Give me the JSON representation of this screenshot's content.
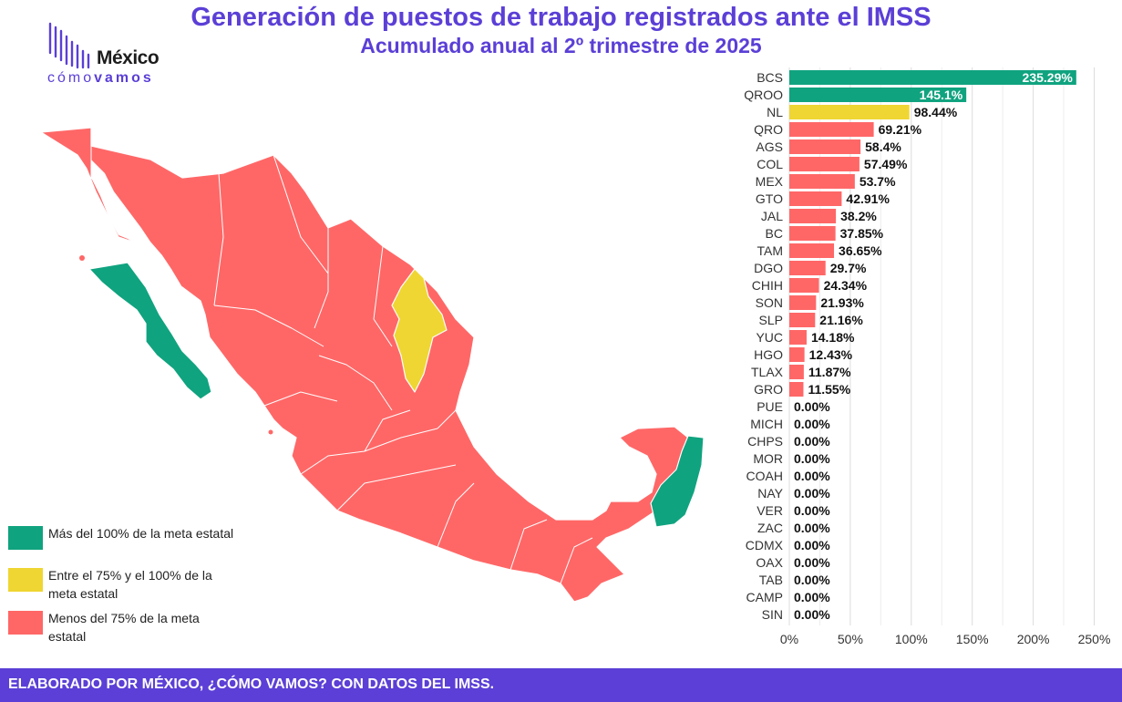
{
  "title": "Generación de puestos de trabajo registrados ante el IMSS",
  "subtitle": "Acumulado anual al 2º trimestre de 2025",
  "logo": {
    "name": "México",
    "tag_left": "cómo",
    "tag_right": "vamos"
  },
  "legend": [
    {
      "label": "Más del 100% de la meta estatal",
      "color": "#10a37f"
    },
    {
      "label": "Entre el 75% y el 100% de la meta estatal",
      "color": "#efd632"
    },
    {
      "label": "Menos del 75% de la meta estatal",
      "color": "#ff6767"
    }
  ],
  "footer": "ELABORADO POR MÉXICO, ¿CÓMO VAMOS? CON DATOS DEL IMSS.",
  "chart_data": {
    "type": "bar",
    "orientation": "horizontal",
    "categories": [
      "BCS",
      "QROO",
      "NL",
      "QRO",
      "AGS",
      "COL",
      "MEX",
      "GTO",
      "JAL",
      "BC",
      "TAM",
      "DGO",
      "CHIH",
      "SON",
      "SLP",
      "YUC",
      "HGO",
      "TLAX",
      "GRO",
      "PUE",
      "MICH",
      "CHPS",
      "MOR",
      "COAH",
      "NAY",
      "VER",
      "ZAC",
      "CDMX",
      "OAX",
      "TAB",
      "CAMP",
      "SIN"
    ],
    "values": [
      235.29,
      145.1,
      98.44,
      69.21,
      58.4,
      57.49,
      53.7,
      42.91,
      38.2,
      37.85,
      36.65,
      29.7,
      24.34,
      21.93,
      21.16,
      14.18,
      12.43,
      11.87,
      11.55,
      0,
      0,
      0,
      0,
      0,
      0,
      0,
      0,
      0,
      0,
      0,
      0,
      0
    ],
    "labels": [
      "235.29%",
      "145.1%",
      "98.44%",
      "69.21%",
      "58.4%",
      "57.49%",
      "53.7%",
      "42.91%",
      "38.2%",
      "37.85%",
      "36.65%",
      "29.7%",
      "24.34%",
      "21.93%",
      "21.16%",
      "14.18%",
      "12.43%",
      "11.87%",
      "11.55%",
      "0.00%",
      "0.00%",
      "0.00%",
      "0.00%",
      "0.00%",
      "0.00%",
      "0.00%",
      "0.00%",
      "0.00%",
      "0.00%",
      "0.00%",
      "0.00%",
      "0.00%"
    ],
    "xlim": [
      0,
      250
    ],
    "xticks": [
      "0%",
      "50%",
      "100%",
      "150%",
      "200%",
      "250%"
    ],
    "grid": true,
    "colors": {
      "high": "#10a37f",
      "mid": "#efd632",
      "low": "#ff6767"
    }
  }
}
